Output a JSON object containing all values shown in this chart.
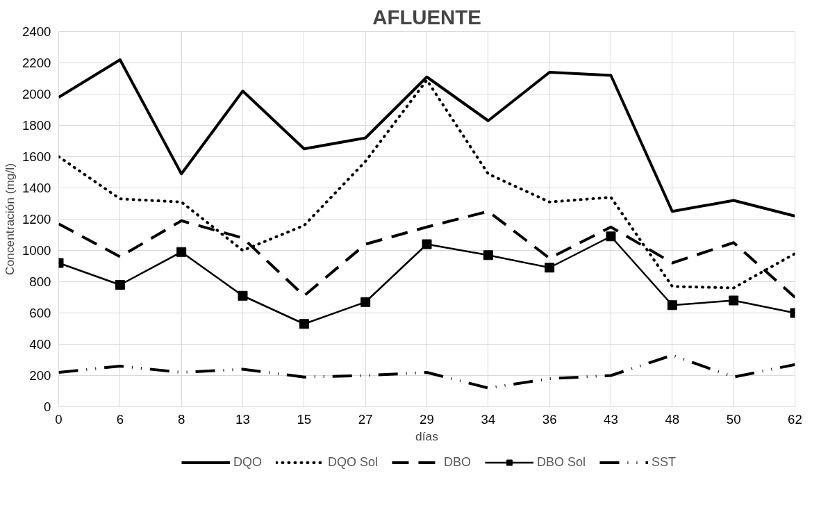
{
  "chart_data": {
    "type": "line",
    "title": "AFLUENTE",
    "xlabel": "días",
    "ylabel": "Concentración (mg/l)",
    "categories": [
      "0",
      "6",
      "8",
      "13",
      "15",
      "27",
      "29",
      "34",
      "36",
      "43",
      "48",
      "50",
      "62"
    ],
    "ylim": [
      0,
      2400
    ],
    "yticks": [
      0,
      200,
      400,
      600,
      800,
      1000,
      1200,
      1400,
      1600,
      1800,
      2000,
      2200,
      2400
    ],
    "grid": true,
    "legend": "bottom",
    "series": [
      {
        "name": "DQO",
        "color": "#000000",
        "line_style": "solid",
        "values": [
          1980,
          2220,
          1490,
          2020,
          1650,
          1720,
          2110,
          1830,
          2140,
          2120,
          1250,
          1320,
          1220
        ]
      },
      {
        "name": "DQO Sol",
        "color": "#000000",
        "line_style": "dotted",
        "values": [
          1600,
          1330,
          1310,
          1000,
          1160,
          1570,
          2090,
          1490,
          1310,
          1340,
          770,
          760,
          980
        ]
      },
      {
        "name": "DBO",
        "color": "#000000",
        "line_style": "dashed",
        "values": [
          1170,
          960,
          1190,
          1080,
          710,
          1040,
          1150,
          1250,
          950,
          1150,
          920,
          1050,
          700
        ]
      },
      {
        "name": "DBO Sol",
        "color": "#000000",
        "line_style": "solid",
        "marker": "square",
        "values": [
          920,
          780,
          990,
          710,
          530,
          670,
          1040,
          970,
          890,
          1090,
          650,
          680,
          600
        ]
      },
      {
        "name": "SST",
        "color": "#000000",
        "line_style": "dashdot",
        "values": [
          220,
          260,
          220,
          240,
          190,
          200,
          220,
          120,
          180,
          200,
          330,
          190,
          270
        ]
      }
    ]
  }
}
